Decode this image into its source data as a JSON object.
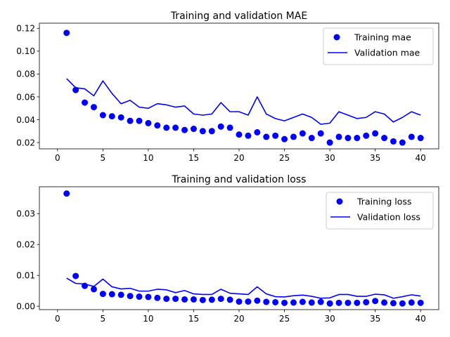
{
  "chart_data": [
    {
      "type": "line",
      "title": "Training and validation MAE",
      "x": [
        1,
        2,
        3,
        4,
        5,
        6,
        7,
        8,
        9,
        10,
        11,
        12,
        13,
        14,
        15,
        16,
        17,
        18,
        19,
        20,
        21,
        22,
        23,
        24,
        25,
        26,
        27,
        28,
        29,
        30,
        31,
        32,
        33,
        34,
        35,
        36,
        37,
        38,
        39,
        40
      ],
      "xticks": [
        0,
        5,
        10,
        15,
        20,
        25,
        30,
        35,
        40
      ],
      "yticks": [
        0.02,
        0.04,
        0.06,
        0.08,
        0.1,
        0.12
      ],
      "ytick_labels": [
        "0.02",
        "0.04",
        "0.06",
        "0.08",
        "0.10",
        "0.12"
      ],
      "xlim": [
        -2,
        42
      ],
      "ylim": [
        0.0145,
        0.1245
      ],
      "legend_position": "upper right",
      "series": [
        {
          "name": "Training mae",
          "style": "points",
          "color": "#0000ff",
          "values": [
            0.116,
            0.066,
            0.055,
            0.051,
            0.044,
            0.043,
            0.042,
            0.039,
            0.039,
            0.037,
            0.035,
            0.033,
            0.033,
            0.031,
            0.032,
            0.03,
            0.03,
            0.034,
            0.033,
            0.027,
            0.026,
            0.029,
            0.025,
            0.026,
            0.023,
            0.025,
            0.028,
            0.024,
            0.028,
            0.02,
            0.025,
            0.024,
            0.024,
            0.026,
            0.028,
            0.024,
            0.021,
            0.02,
            0.025,
            0.024
          ]
        },
        {
          "name": "Validation mae",
          "style": "line",
          "color": "#0000ff",
          "values": [
            0.076,
            0.068,
            0.067,
            0.061,
            0.074,
            0.063,
            0.054,
            0.057,
            0.051,
            0.05,
            0.054,
            0.053,
            0.051,
            0.052,
            0.045,
            0.044,
            0.045,
            0.055,
            0.047,
            0.047,
            0.044,
            0.06,
            0.045,
            0.041,
            0.039,
            0.042,
            0.045,
            0.042,
            0.036,
            0.037,
            0.047,
            0.044,
            0.041,
            0.042,
            0.047,
            0.045,
            0.038,
            0.042,
            0.047,
            0.044
          ]
        }
      ]
    },
    {
      "type": "line",
      "title": "Training and validation loss",
      "x": [
        1,
        2,
        3,
        4,
        5,
        6,
        7,
        8,
        9,
        10,
        11,
        12,
        13,
        14,
        15,
        16,
        17,
        18,
        19,
        20,
        21,
        22,
        23,
        24,
        25,
        26,
        27,
        28,
        29,
        30,
        31,
        32,
        33,
        34,
        35,
        36,
        37,
        38,
        39,
        40
      ],
      "xticks": [
        0,
        5,
        10,
        15,
        20,
        25,
        30,
        35,
        40
      ],
      "yticks": [
        0.0,
        0.01,
        0.02,
        0.03
      ],
      "ytick_labels": [
        "0.00",
        "0.01",
        "0.02",
        "0.03"
      ],
      "xlim": [
        -2,
        42
      ],
      "ylim": [
        -0.0011,
        0.0387
      ],
      "legend_position": "upper right",
      "series": [
        {
          "name": "Training loss",
          "style": "points",
          "color": "#0000ff",
          "values": [
            0.0365,
            0.0098,
            0.0066,
            0.0055,
            0.004,
            0.0039,
            0.0037,
            0.0033,
            0.0031,
            0.003,
            0.0027,
            0.0024,
            0.0024,
            0.0022,
            0.0022,
            0.002,
            0.0021,
            0.0024,
            0.0021,
            0.0015,
            0.0015,
            0.0018,
            0.0014,
            0.0013,
            0.0011,
            0.0012,
            0.0014,
            0.0012,
            0.0014,
            0.0009,
            0.0011,
            0.0011,
            0.0011,
            0.0013,
            0.0017,
            0.0012,
            0.001,
            0.0009,
            0.0012,
            0.0011
          ]
        },
        {
          "name": "Validation loss",
          "style": "line",
          "color": "#0000ff",
          "values": [
            0.0091,
            0.0074,
            0.0072,
            0.0064,
            0.0088,
            0.0063,
            0.0056,
            0.0058,
            0.0049,
            0.0049,
            0.0055,
            0.0053,
            0.0044,
            0.0051,
            0.004,
            0.0038,
            0.0038,
            0.0055,
            0.0042,
            0.004,
            0.0038,
            0.0063,
            0.004,
            0.0031,
            0.003,
            0.0034,
            0.0036,
            0.0032,
            0.0026,
            0.0027,
            0.0038,
            0.0038,
            0.0032,
            0.0032,
            0.0039,
            0.0037,
            0.0026,
            0.0031,
            0.0037,
            0.0033
          ]
        }
      ]
    }
  ]
}
